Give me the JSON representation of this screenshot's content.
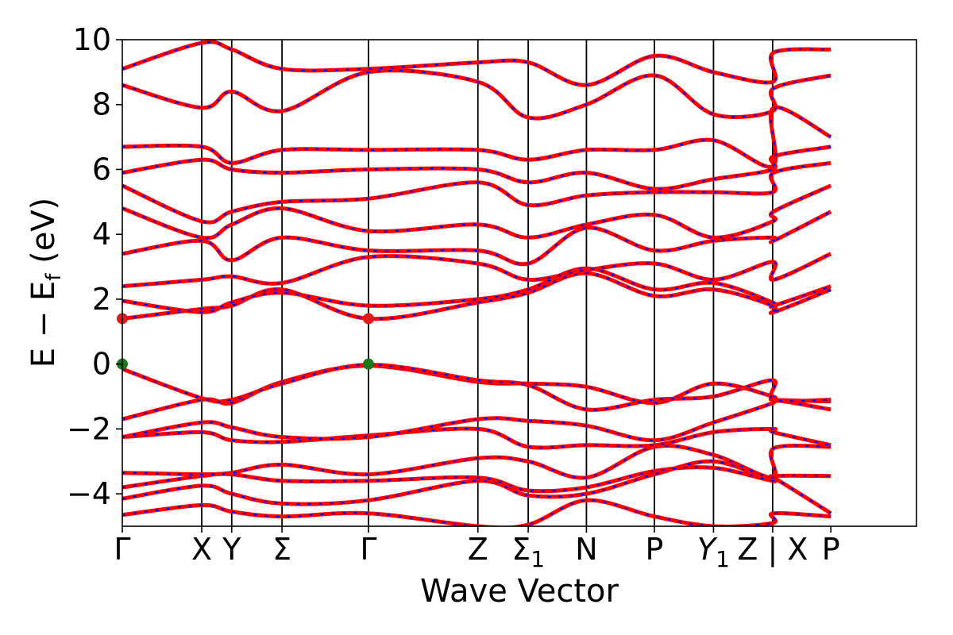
{
  "chart_data": {
    "type": "line",
    "xlabel": "Wave Vector",
    "ylabel_parts": {
      "main": "E − E",
      "sub": "f",
      "tail": " (eV)"
    },
    "ylim": [
      -5,
      10
    ],
    "y_ticks": [
      -4,
      -2,
      0,
      2,
      4,
      6,
      8,
      10
    ],
    "y_tick_labels": [
      "−4",
      "−2",
      "0",
      "2",
      "4",
      "6",
      "8",
      "10"
    ],
    "x_range": [
      0,
      9.0
    ],
    "x_ticks": [
      {
        "x": 0.0,
        "label": "Γ",
        "sub": ""
      },
      {
        "x": 0.9,
        "label": "X",
        "sub": ""
      },
      {
        "x": 1.24,
        "label": "Y",
        "sub": ""
      },
      {
        "x": 1.81,
        "label": "Σ",
        "sub": ""
      },
      {
        "x": 2.79,
        "label": "Γ",
        "sub": ""
      },
      {
        "x": 4.03,
        "label": "Z",
        "sub": ""
      },
      {
        "x": 4.6,
        "label": "Σ",
        "sub": "1"
      },
      {
        "x": 5.26,
        "label": "N",
        "sub": ""
      },
      {
        "x": 6.03,
        "label": "P",
        "sub": ""
      },
      {
        "x": 6.7,
        "label": "Y",
        "sub": "1",
        "italic": true
      },
      {
        "x": 7.37,
        "label": "Z | X",
        "sub": ""
      },
      {
        "x": 8.03,
        "label": "P",
        "sub": ""
      }
    ],
    "vertical_lines": [
      0.9,
      1.24,
      1.81,
      2.79,
      4.03,
      4.6,
      5.26,
      6.03,
      6.7,
      7.37
    ],
    "series": [
      {
        "color": "#ff0000",
        "style": "solid"
      },
      {
        "color": "#0000ff",
        "style": "dashed"
      }
    ],
    "band_points": {
      "x": [
        0.0,
        0.9,
        1.24,
        1.81,
        2.79,
        4.03,
        4.6,
        5.26,
        6.03,
        6.7,
        7.37,
        7.38,
        8.03
      ],
      "bands": [
        [
          -4.65,
          -4.35,
          -4.55,
          -4.7,
          -4.6,
          -5.0,
          -4.95,
          -4.2,
          -4.7,
          -5.0,
          -4.9,
          -4.6,
          -4.7
        ],
        [
          -4.15,
          -3.75,
          -4.0,
          -4.3,
          -4.2,
          -3.6,
          -4.05,
          -4.0,
          -3.4,
          -3.0,
          -3.6,
          -3.5,
          -4.6
        ],
        [
          -3.8,
          -3.45,
          -3.4,
          -3.6,
          -3.6,
          -3.5,
          -3.9,
          -3.8,
          -3.3,
          -3.2,
          -3.6,
          -3.45,
          -3.45
        ],
        [
          -3.35,
          -3.4,
          -3.35,
          -3.1,
          -3.4,
          -2.9,
          -3.0,
          -3.5,
          -2.55,
          -2.8,
          -3.5,
          -2.6,
          -2.55
        ],
        [
          -2.25,
          -2.1,
          -2.35,
          -2.4,
          -2.2,
          -2.0,
          -2.55,
          -2.5,
          -2.5,
          -2.1,
          -2.0,
          -2.1,
          -2.5
        ],
        [
          -2.25,
          -1.8,
          -1.95,
          -2.25,
          -2.25,
          -1.7,
          -1.75,
          -1.9,
          -2.35,
          -1.8,
          -1.2,
          -1.1,
          -1.4
        ],
        [
          -1.7,
          -1.1,
          -1.2,
          -0.55,
          -0.05,
          -0.55,
          -0.6,
          -0.7,
          -1.2,
          -0.6,
          -1.0,
          -1.1,
          -1.15
        ],
        [
          -0.15,
          -1.05,
          -1.1,
          -0.6,
          -0.02,
          -0.5,
          -0.65,
          -1.4,
          -1.1,
          -1.0,
          -0.5,
          -1.1,
          -1.1
        ],
        [
          1.4,
          1.7,
          1.8,
          2.3,
          1.4,
          1.9,
          2.2,
          2.8,
          2.1,
          2.3,
          1.8,
          1.6,
          2.3
        ],
        [
          1.95,
          1.6,
          1.9,
          2.2,
          1.8,
          2.0,
          2.3,
          2.95,
          2.3,
          2.5,
          1.9,
          1.8,
          2.4
        ],
        [
          2.4,
          2.6,
          2.7,
          2.5,
          3.3,
          3.1,
          2.6,
          2.9,
          3.1,
          2.6,
          3.15,
          2.6,
          3.4
        ],
        [
          3.4,
          3.8,
          3.2,
          3.9,
          3.5,
          3.5,
          3.1,
          4.2,
          3.5,
          3.8,
          3.9,
          3.8,
          4.7
        ],
        [
          4.8,
          3.9,
          4.3,
          4.8,
          4.1,
          4.3,
          3.9,
          4.3,
          4.6,
          3.9,
          4.4,
          4.7,
          5.5
        ],
        [
          5.5,
          4.4,
          4.7,
          5.0,
          5.1,
          5.6,
          4.9,
          5.2,
          5.3,
          5.3,
          5.3,
          5.9,
          6.2
        ],
        [
          5.9,
          6.3,
          6.0,
          5.9,
          6.0,
          6.0,
          5.6,
          5.9,
          5.4,
          5.7,
          6.0,
          6.4,
          6.7
        ],
        [
          6.7,
          6.7,
          6.2,
          6.6,
          6.6,
          6.6,
          6.3,
          6.6,
          6.6,
          6.9,
          6.1,
          7.9,
          7.0
        ],
        [
          8.6,
          7.9,
          8.4,
          7.8,
          9.0,
          8.7,
          7.6,
          8.0,
          8.9,
          7.7,
          7.8,
          8.5,
          8.9
        ],
        [
          9.1,
          9.9,
          9.7,
          9.1,
          9.1,
          9.3,
          9.3,
          8.6,
          9.5,
          9.0,
          8.7,
          9.6,
          9.7
        ]
      ]
    },
    "markers": [
      {
        "x": 0.0,
        "y": 1.4,
        "color": "#e0191b"
      },
      {
        "x": 2.79,
        "y": 1.4,
        "color": "#e0191b"
      },
      {
        "x": 0.0,
        "y": 0.0,
        "color": "#1a7a1a"
      },
      {
        "x": 2.79,
        "y": 0.0,
        "color": "#1a7a1a"
      }
    ]
  }
}
